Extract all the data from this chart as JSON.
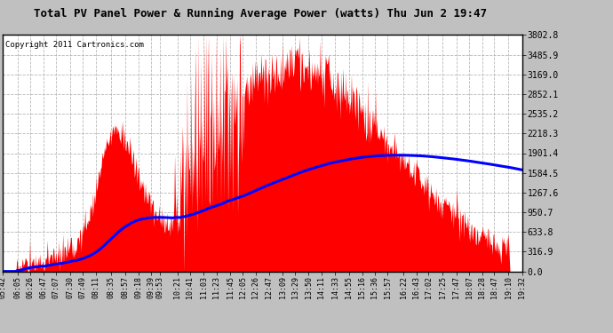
{
  "title": "Total PV Panel Power & Running Average Power (watts) Thu Jun 2 19:47",
  "copyright": "Copyright 2011 Cartronics.com",
  "background_color": "#c0c0c0",
  "plot_bg_color": "#ffffff",
  "yticks": [
    0.0,
    316.9,
    633.8,
    950.7,
    1267.6,
    1584.5,
    1901.4,
    2218.3,
    2535.2,
    2852.1,
    3169.0,
    3485.9,
    3802.8
  ],
  "ymax": 3802.8,
  "ymin": 0.0,
  "fill_color": "#ff0000",
  "line_color": "#0000ff",
  "grid_color": "#b0b0b0",
  "xtick_labels": [
    "05:42",
    "06:05",
    "06:26",
    "06:47",
    "07:07",
    "07:30",
    "07:49",
    "08:11",
    "08:35",
    "08:57",
    "09:18",
    "09:39",
    "09:53",
    "10:21",
    "10:41",
    "11:03",
    "11:23",
    "11:45",
    "12:05",
    "12:26",
    "12:47",
    "13:09",
    "13:29",
    "13:50",
    "14:11",
    "14:33",
    "14:55",
    "15:16",
    "15:36",
    "15:57",
    "16:22",
    "16:43",
    "17:02",
    "17:25",
    "17:47",
    "18:07",
    "18:28",
    "18:47",
    "19:10",
    "19:32"
  ]
}
